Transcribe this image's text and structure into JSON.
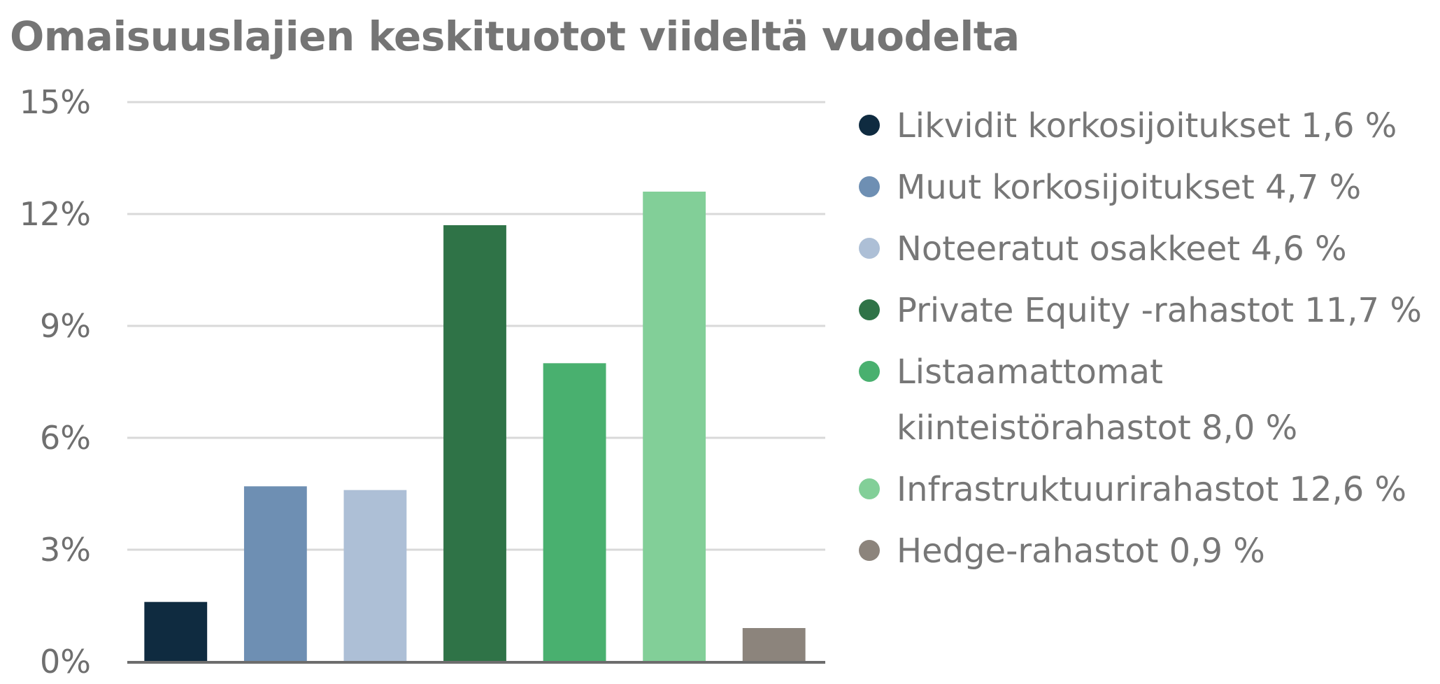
{
  "chart_data": {
    "type": "bar",
    "title": "Omaisuuslajien keskituotot viideltä vuodelta",
    "categories": [
      "Likvidit korkosijoitukset",
      "Muut korkosijoitukset",
      "Noteeratut osakkeet",
      "Private Equity -rahastot",
      "Listaamattomat kiinteistörahastot",
      "Infrastruktuurirahastot",
      "Hedge-rahastot"
    ],
    "values": [
      1.6,
      4.7,
      4.6,
      11.7,
      8.0,
      12.6,
      0.9
    ],
    "colors": [
      "#0f2b40",
      "#6e8fb3",
      "#adbfd6",
      "#2f7347",
      "#49b06f",
      "#82cf98",
      "#8c847c"
    ],
    "ylim": [
      0,
      15
    ],
    "yticks": [
      0,
      3,
      6,
      9,
      12,
      15
    ],
    "ytick_labels": [
      "0%",
      "3%",
      "6%",
      "9%",
      "12%",
      "15%"
    ],
    "xlabel": "",
    "ylabel": "",
    "grid": true,
    "legend_position": "right",
    "legend": [
      "Likvidit korkosijoitukset 1,6 %",
      "Muut korkosijoitukset 4,7 %",
      "Noteeratut osakkeet 4,6 %",
      "Private Equity -rahastot 11,7 %",
      "Listaamattomat kiinteistörahastot 8,0 %",
      "Infrastruktuurirahastot 12,6 %",
      "Hedge-rahastot 0,9 %"
    ]
  }
}
